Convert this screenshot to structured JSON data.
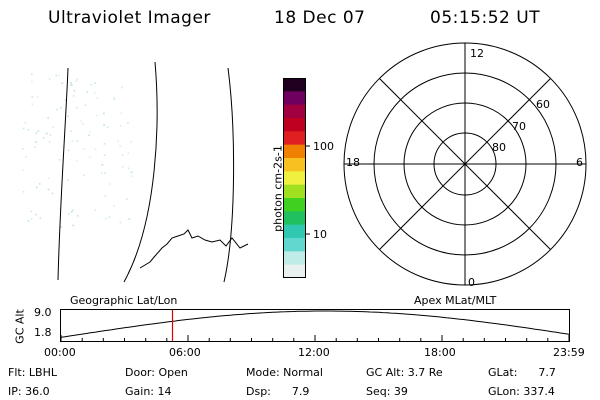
{
  "header": {
    "instrument": "Ultraviolet Imager",
    "date": "18 Dec 07",
    "time": "05:15:52 UT"
  },
  "colorbar": {
    "label": "photon cm-2s-1",
    "ticks": [
      "100",
      "10"
    ],
    "colors": [
      "#e8f0f0",
      "#c0ece8",
      "#60d8d0",
      "#30c8b0",
      "#20c060",
      "#40d020",
      "#a0e020",
      "#f0f040",
      "#f8c020",
      "#f08000",
      "#e02020",
      "#c00020",
      "#a00040",
      "#700060",
      "#200020"
    ]
  },
  "polar": {
    "mlt_labels": {
      "top": "12",
      "bottom": "0",
      "left": "18",
      "right": "6"
    },
    "lat_labels": [
      "60",
      "70",
      "80"
    ]
  },
  "timeline": {
    "axis_label": "GC Alt",
    "y_max": "9.0",
    "y_min": "1.8",
    "left_title": "Geographic Lat/Lon",
    "right_title": "Apex MLat/MLT",
    "time_ticks": [
      "00:00",
      "06:00",
      "12:00",
      "18:00",
      "23:59"
    ],
    "current_time_fraction": 0.2194
  },
  "info": {
    "flt": "Flt: LBHL",
    "ip": "IP: 36.0",
    "door": "Door: Open",
    "gain": "Gain: 14",
    "mode": "Mode: Normal",
    "dsp": "Dsp:      7.9",
    "gc_alt": "GC Alt: 3.7 Re",
    "seq": "Seq: 39",
    "glat": "GLat:      7.7",
    "glon": "GLon: 337.4"
  }
}
